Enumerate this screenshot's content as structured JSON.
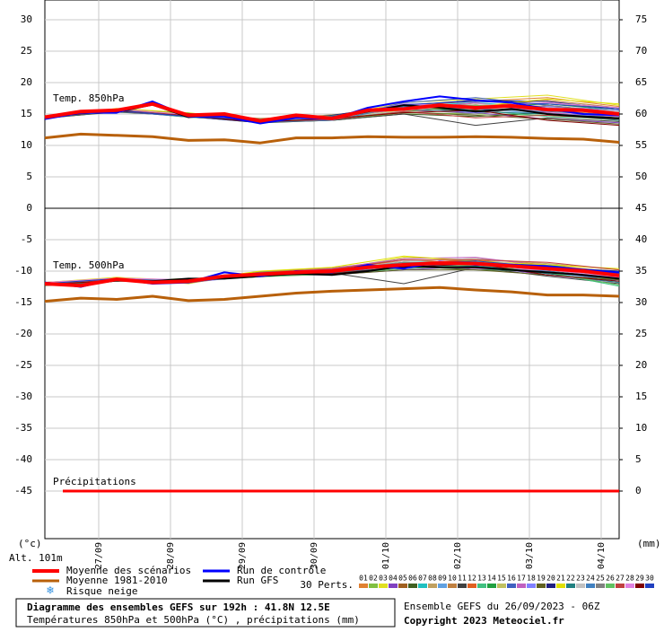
{
  "chart_data": {
    "type": "line",
    "xlim": [
      0,
      192
    ],
    "xticks": [
      {
        "value": 18,
        "label": "27/09"
      },
      {
        "value": 42,
        "label": "28/09"
      },
      {
        "value": 66,
        "label": "29/09"
      },
      {
        "value": 90,
        "label": "30/09"
      },
      {
        "value": 114,
        "label": "01/10"
      },
      {
        "value": 138,
        "label": "02/10"
      },
      {
        "value": 162,
        "label": "03/10"
      },
      {
        "value": 186,
        "label": "04/10"
      }
    ],
    "ylim": [
      -52.571,
      33.143
    ],
    "yticks": [
      30,
      25,
      20,
      15,
      10,
      5,
      0,
      -5,
      -10,
      -15,
      -20,
      -25,
      -30,
      -35,
      -40,
      -45
    ],
    "y2lim": [
      -7.571,
      78.143
    ],
    "y2ticks": [
      75,
      70,
      65,
      60,
      55,
      50,
      45,
      40,
      35,
      30,
      25,
      20,
      15,
      10,
      5,
      0
    ],
    "grid": true,
    "y_label": "(°c)",
    "altitude": "Alt. 101m",
    "y2_label": "(mm)",
    "label_850": "Temp. 850hPa",
    "label_500": "Temp. 500hPa",
    "x": [
      0,
      12,
      24,
      36,
      48,
      60,
      72,
      84,
      96,
      108,
      120,
      132,
      144,
      156,
      168,
      180,
      192
    ],
    "series": [
      {
        "name": "Moyenne 1981-2010",
        "color": "#b8600a",
        "t850": [
          11.2,
          11.8,
          11.6,
          11.4,
          10.8,
          10.9,
          10.4,
          11.2,
          11.2,
          11.4,
          11.3,
          11.3,
          11.4,
          11.3,
          11.1,
          11.0,
          10.5
        ],
        "t500": [
          -14.8,
          -14.3,
          -14.5,
          -14.0,
          -14.7,
          -14.5,
          -14.0,
          -13.5,
          -13.2,
          -13.0,
          -12.8,
          -12.6,
          -13.0,
          -13.3,
          -13.8,
          -13.8,
          -14.0
        ]
      },
      {
        "name": "Run GFS",
        "color": "#000000",
        "t850": [
          14.3,
          15.3,
          15.3,
          16.5,
          14.5,
          15.0,
          13.8,
          14.6,
          14.3,
          15.4,
          16.4,
          16.0,
          15.4,
          15.8,
          15.0,
          14.6,
          14.3
        ],
        "t500": [
          -12.0,
          -12.2,
          -11.5,
          -11.6,
          -11.2,
          -11.2,
          -10.8,
          -10.4,
          -10.6,
          -10.0,
          -9.2,
          -9.4,
          -9.4,
          -9.8,
          -10.2,
          -10.6,
          -11.2
        ]
      },
      {
        "name": "Run de contrôle",
        "color": "#0000ff",
        "t850": [
          14.2,
          15.2,
          15.2,
          17.0,
          14.6,
          14.6,
          13.5,
          14.4,
          14.2,
          16.0,
          17.0,
          17.8,
          17.2,
          16.8,
          15.8,
          15.0,
          14.8
        ],
        "t500": [
          -11.8,
          -12.5,
          -11.2,
          -12.0,
          -11.8,
          -10.2,
          -10.8,
          -10.0,
          -10.2,
          -9.0,
          -9.6,
          -8.5,
          -9.0,
          -9.0,
          -9.2,
          -9.8,
          -10.2
        ]
      },
      {
        "name": "Moyenne des scénarios",
        "color": "#ff0000",
        "t850": [
          14.5,
          15.4,
          15.6,
          16.6,
          14.8,
          15.0,
          13.9,
          14.8,
          14.3,
          15.6,
          15.8,
          16.4,
          16.0,
          16.3,
          15.7,
          15.6,
          15.0
        ],
        "t500": [
          -12.0,
          -12.3,
          -11.3,
          -11.8,
          -11.6,
          -10.8,
          -10.5,
          -10.2,
          -10.0,
          -9.4,
          -9.0,
          -8.7,
          -8.8,
          -9.2,
          -9.6,
          -10.0,
          -10.7
        ]
      }
    ],
    "snow": "Risque neige",
    "perturbations": {
      "label": "30 Perts.",
      "x": [
        0,
        24,
        48,
        72,
        96,
        120,
        144,
        168,
        192
      ],
      "members": [
        {
          "name": "01",
          "color": "#e08030",
          "t850": [
            14.6,
            15.8,
            15.0,
            14.2,
            14.8,
            16.4,
            17.0,
            17.6,
            16.2
          ],
          "t500": [
            -11.8,
            -11.2,
            -11.8,
            -10.2,
            -9.6,
            -8.4,
            -8.0,
            -9.0,
            -10.2
          ]
        },
        {
          "name": "02",
          "color": "#80c040",
          "t850": [
            14.4,
            15.4,
            14.6,
            13.6,
            14.0,
            15.2,
            15.0,
            14.8,
            14.0
          ],
          "t500": [
            -12.2,
            -11.5,
            -11.2,
            -10.8,
            -10.4,
            -9.4,
            -9.6,
            -10.2,
            -11.4
          ]
        },
        {
          "name": "03",
          "color": "#e0e020",
          "t850": [
            14.5,
            15.9,
            15.2,
            14.0,
            14.6,
            16.8,
            17.4,
            18.0,
            16.4
          ],
          "t500": [
            -12.0,
            -11.0,
            -12.0,
            -10.0,
            -9.8,
            -7.8,
            -8.2,
            -9.4,
            -10.0
          ]
        },
        {
          "name": "04",
          "color": "#8040c0",
          "t850": [
            14.3,
            15.5,
            14.5,
            13.8,
            14.2,
            15.6,
            15.2,
            14.2,
            13.6
          ],
          "t500": [
            -12.1,
            -11.4,
            -11.5,
            -10.6,
            -10.6,
            -9.8,
            -9.2,
            -10.6,
            -11.8
          ]
        },
        {
          "name": "05",
          "color": "#a06020",
          "t850": [
            14.6,
            15.7,
            14.9,
            14.1,
            14.5,
            16.0,
            16.6,
            16.2,
            15.4
          ],
          "t500": [
            -11.9,
            -11.3,
            -11.7,
            -10.4,
            -9.9,
            -8.8,
            -8.6,
            -9.2,
            -10.4
          ]
        },
        {
          "name": "06",
          "color": "#406020",
          "t850": [
            14.4,
            15.3,
            14.7,
            13.7,
            14.0,
            15.0,
            14.6,
            15.2,
            14.4
          ],
          "t500": [
            -12.3,
            -11.6,
            -11.4,
            -10.9,
            -10.2,
            -9.2,
            -9.8,
            -10.0,
            -11.0
          ]
        },
        {
          "name": "07",
          "color": "#20c0c0",
          "t850": [
            14.5,
            15.6,
            15.1,
            13.9,
            14.4,
            16.2,
            16.8,
            16.0,
            15.2
          ],
          "t500": [
            -12.0,
            -11.2,
            -11.9,
            -10.3,
            -9.7,
            -8.6,
            -8.4,
            -9.8,
            -10.6
          ]
        },
        {
          "name": "08",
          "color": "#c0a060",
          "t850": [
            14.7,
            15.8,
            14.8,
            14.0,
            14.9,
            15.8,
            15.6,
            16.8,
            15.8
          ],
          "t500": [
            -11.8,
            -11.1,
            -11.6,
            -10.5,
            -10.1,
            -9.0,
            -8.0,
            -8.8,
            -9.8
          ]
        },
        {
          "name": "09",
          "color": "#60a0e0",
          "t850": [
            14.4,
            15.5,
            14.6,
            13.8,
            14.2,
            16.6,
            15.8,
            15.0,
            14.6
          ],
          "t500": [
            -12.2,
            -11.4,
            -11.3,
            -10.7,
            -10.5,
            -9.6,
            -9.0,
            -10.4,
            -11.2
          ]
        },
        {
          "name": "10",
          "color": "#c08040",
          "t850": [
            14.5,
            15.7,
            15.0,
            14.3,
            14.6,
            15.4,
            16.2,
            17.2,
            16.0
          ],
          "t500": [
            -12.0,
            -11.3,
            -11.8,
            -10.1,
            -9.5,
            -8.2,
            -8.8,
            -9.6,
            -10.8
          ]
        },
        {
          "name": "11",
          "color": "#404040",
          "t850": [
            14.3,
            15.4,
            14.7,
            13.6,
            14.0,
            15.0,
            13.2,
            14.4,
            13.8
          ],
          "t500": [
            -12.1,
            -11.5,
            -11.6,
            -10.8,
            -10.3,
            -12.0,
            -9.4,
            -10.8,
            -12.0
          ]
        },
        {
          "name": "12",
          "color": "#e06020",
          "t850": [
            14.6,
            15.6,
            14.9,
            14.0,
            14.4,
            15.9,
            16.4,
            15.6,
            14.8
          ],
          "t500": [
            -11.9,
            -11.2,
            -11.4,
            -10.4,
            -9.9,
            -8.8,
            -8.2,
            -9.4,
            -10.4
          ]
        },
        {
          "name": "13",
          "color": "#40c080",
          "t850": [
            14.5,
            15.5,
            14.5,
            13.9,
            14.7,
            16.3,
            15.6,
            14.6,
            14.2
          ],
          "t500": [
            -12.0,
            -11.4,
            -11.7,
            -10.6,
            -10.0,
            -9.2,
            -9.6,
            -10.2,
            -12.4
          ]
        },
        {
          "name": "14",
          "color": "#20a040",
          "t850": [
            14.4,
            15.7,
            14.8,
            14.1,
            14.3,
            15.5,
            16.0,
            16.6,
            15.6
          ],
          "t500": [
            -12.2,
            -11.3,
            -11.5,
            -10.2,
            -9.8,
            -8.6,
            -8.8,
            -9.0,
            -10.6
          ]
        },
        {
          "name": "15",
          "color": "#c0c060",
          "t850": [
            14.6,
            15.6,
            15.0,
            13.8,
            14.5,
            16.0,
            15.4,
            15.8,
            15.0
          ],
          "t500": [
            -11.8,
            -11.1,
            -11.9,
            -10.5,
            -10.2,
            -9.4,
            -8.4,
            -9.8,
            -11.0
          ]
        },
        {
          "name": "16",
          "color": "#4060c0",
          "t850": [
            14.5,
            15.4,
            14.6,
            13.7,
            14.1,
            16.8,
            17.6,
            16.4,
            15.2
          ],
          "t500": [
            -12.1,
            -11.6,
            -11.3,
            -10.9,
            -10.4,
            -9.0,
            -9.2,
            -10.0,
            -11.6
          ]
        },
        {
          "name": "17",
          "color": "#c060c0",
          "t850": [
            14.3,
            15.8,
            14.9,
            14.0,
            14.6,
            15.7,
            16.8,
            15.2,
            14.6
          ],
          "t500": [
            -12.0,
            -11.2,
            -11.6,
            -10.3,
            -9.6,
            -8.0,
            -7.8,
            -9.2,
            -10.2
          ]
        },
        {
          "name": "18",
          "color": "#8080ff",
          "t850": [
            14.5,
            15.5,
            14.7,
            14.2,
            14.4,
            16.1,
            15.2,
            16.2,
            15.6
          ],
          "t500": [
            -11.9,
            -11.4,
            -11.8,
            -10.7,
            -10.1,
            -8.8,
            -9.0,
            -9.6,
            -10.8
          ]
        },
        {
          "name": "19",
          "color": "#606020",
          "t850": [
            14.6,
            15.7,
            15.1,
            13.9,
            14.2,
            15.3,
            14.8,
            14.2,
            13.4
          ],
          "t500": [
            -12.3,
            -11.5,
            -11.4,
            -10.4,
            -10.6,
            -9.8,
            -9.8,
            -10.6,
            -11.4
          ]
        },
        {
          "name": "20",
          "color": "#202080",
          "t850": [
            14.4,
            15.6,
            14.6,
            13.6,
            14.8,
            16.4,
            17.2,
            17.0,
            15.8
          ],
          "t500": [
            -12.0,
            -11.3,
            -11.7,
            -10.6,
            -9.9,
            -9.2,
            -8.6,
            -9.4,
            -10.0
          ]
        },
        {
          "name": "21",
          "color": "#e0e000",
          "t850": [
            14.5,
            15.8,
            15.0,
            14.1,
            14.3,
            15.6,
            16.2,
            17.4,
            16.6
          ],
          "t500": [
            -11.8,
            -11.0,
            -11.5,
            -10.0,
            -9.4,
            -7.6,
            -8.4,
            -9.0,
            -9.6
          ]
        },
        {
          "name": "22",
          "color": "#208080",
          "t850": [
            14.4,
            15.5,
            14.8,
            13.8,
            14.5,
            15.9,
            15.4,
            15.0,
            14.0
          ],
          "t500": [
            -12.2,
            -11.5,
            -11.6,
            -10.8,
            -10.3,
            -9.4,
            -9.2,
            -10.4,
            -11.8
          ]
        },
        {
          "name": "23",
          "color": "#c0c0c0",
          "t850": [
            14.6,
            15.6,
            14.7,
            14.0,
            14.4,
            15.5,
            16.6,
            16.0,
            15.4
          ],
          "t500": [
            -12.0,
            -11.3,
            -11.8,
            -10.4,
            -10.0,
            -8.4,
            -8.0,
            -9.6,
            -10.4
          ]
        },
        {
          "name": "24",
          "color": "#4080c0",
          "t850": [
            14.5,
            15.4,
            14.9,
            13.7,
            14.0,
            16.2,
            15.8,
            15.4,
            14.8
          ],
          "t500": [
            -12.1,
            -11.4,
            -11.3,
            -10.5,
            -10.2,
            -9.0,
            -9.4,
            -10.0,
            -11.2
          ]
        },
        {
          "name": "25",
          "color": "#808080",
          "t850": [
            14.3,
            15.7,
            14.6,
            13.9,
            14.6,
            15.8,
            15.0,
            16.4,
            15.2
          ],
          "t500": [
            -11.9,
            -11.2,
            -11.7,
            -10.2,
            -9.8,
            -8.6,
            -8.6,
            -9.2,
            -10.6
          ]
        },
        {
          "name": "26",
          "color": "#60c060",
          "t850": [
            14.6,
            15.5,
            15.0,
            14.2,
            14.7,
            16.0,
            16.4,
            15.8,
            15.0
          ],
          "t500": [
            -12.0,
            -11.6,
            -11.5,
            -10.9,
            -10.5,
            -9.6,
            -9.0,
            -10.2,
            -12.2
          ]
        },
        {
          "name": "27",
          "color": "#c04040",
          "t850": [
            14.5,
            15.6,
            14.8,
            13.8,
            14.1,
            15.4,
            14.4,
            14.8,
            14.2
          ],
          "t500": [
            -12.2,
            -11.3,
            -11.9,
            -10.3,
            -9.7,
            -8.2,
            -8.2,
            -8.6,
            -9.8
          ]
        },
        {
          "name": "28",
          "color": "#e080e0",
          "t850": [
            14.4,
            15.8,
            14.9,
            14.0,
            14.5,
            16.6,
            16.2,
            16.8,
            16.0
          ],
          "t500": [
            -11.8,
            -11.1,
            -11.4,
            -10.6,
            -10.1,
            -9.2,
            -9.6,
            -9.8,
            -11.0
          ]
        },
        {
          "name": "29",
          "color": "#800000",
          "t850": [
            14.5,
            15.5,
            14.7,
            13.7,
            14.3,
            15.2,
            15.6,
            14.0,
            13.2
          ],
          "t500": [
            -12.1,
            -11.5,
            -11.6,
            -10.7,
            -10.4,
            -9.4,
            -8.8,
            -10.6,
            -11.6
          ]
        },
        {
          "name": "30",
          "color": "#2040c0",
          "t850": [
            14.6,
            15.6,
            14.6,
            14.1,
            14.6,
            16.5,
            17.0,
            16.6,
            15.8
          ],
          "t500": [
            -12.0,
            -11.2,
            -11.8,
            -10.4,
            -9.9,
            -8.8,
            -8.4,
            -9.4,
            -10.4
          ]
        }
      ]
    },
    "precipitation": {
      "label": "Précipitations",
      "color": "#ff0000",
      "axis": "y2",
      "x": [
        6,
        192
      ],
      "values": [
        0,
        0
      ]
    },
    "footer": {
      "title": "Diagramme des ensembles GEFS sur 192h : 41.8N 12.5E",
      "subtitle": "Températures 850hPa et 500hPa (°C) , précipitations (mm)",
      "run": "Ensemble GEFS du 26/09/2023 - 06Z",
      "copyright": "Copyright 2023 Meteociel.fr"
    }
  }
}
